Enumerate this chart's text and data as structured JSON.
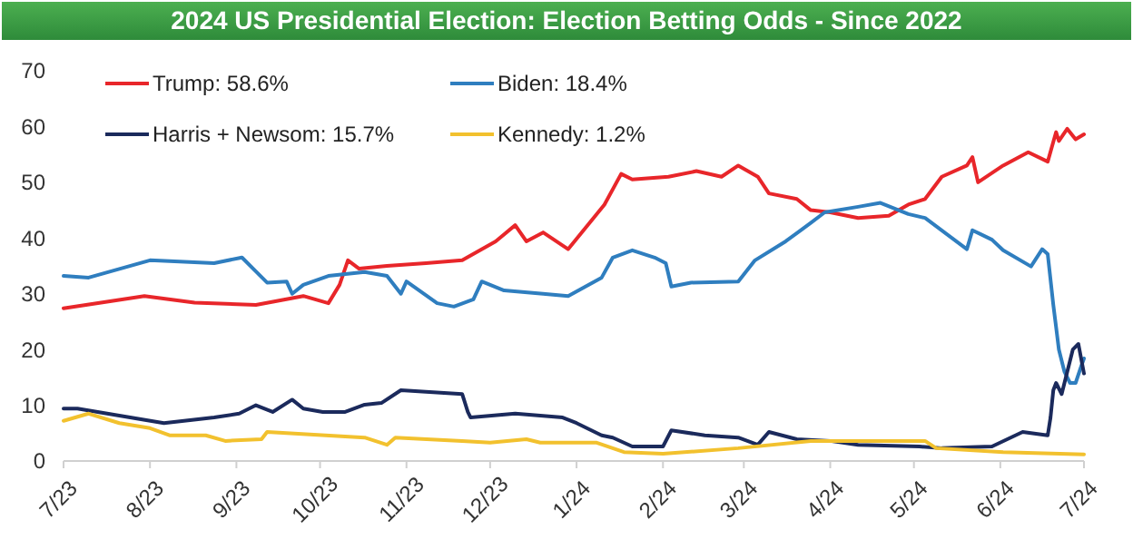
{
  "chart_data": {
    "type": "line",
    "title": "2024 US Presidential Election: Election Betting Odds - Since 2022",
    "xlim": [
      "2023-07-01",
      "2024-07-01"
    ],
    "xticks": [
      {
        "value": "2023-07-01",
        "label": "7/23"
      },
      {
        "value": "2023-08-01",
        "label": "8/23"
      },
      {
        "value": "2023-09-01",
        "label": "9/23"
      },
      {
        "value": "2023-10-01",
        "label": "10/23"
      },
      {
        "value": "2023-11-01",
        "label": "11/23"
      },
      {
        "value": "2023-12-01",
        "label": "12/23"
      },
      {
        "value": "2024-01-01",
        "label": "1/24"
      },
      {
        "value": "2024-02-01",
        "label": "2/24"
      },
      {
        "value": "2024-03-01",
        "label": "3/24"
      },
      {
        "value": "2024-04-01",
        "label": "4/24"
      },
      {
        "value": "2024-05-01",
        "label": "5/24"
      },
      {
        "value": "2024-06-01",
        "label": "6/24"
      },
      {
        "value": "2024-07-01",
        "label": "7/24"
      }
    ],
    "ylim": [
      0,
      70
    ],
    "yticks": [
      0,
      10,
      20,
      30,
      40,
      50,
      60,
      70
    ],
    "grid": false,
    "legend": "top",
    "marker": "none",
    "line_style": "solid",
    "series": [
      {
        "name": "Trump: 58.6%",
        "color": "#e8262a",
        "x": [
          "2023-07-01",
          "2023-07-30",
          "2023-08-17",
          "2023-09-08",
          "2023-09-25",
          "2023-10-04",
          "2023-10-08",
          "2023-10-11",
          "2023-10-15",
          "2023-10-25",
          "2023-11-08",
          "2023-11-21",
          "2023-12-03",
          "2023-12-10",
          "2023-12-14",
          "2023-12-20",
          "2023-12-29",
          "2024-01-11",
          "2024-01-17",
          "2024-01-21",
          "2024-02-03",
          "2024-02-13",
          "2024-02-22",
          "2024-02-28",
          "2024-03-06",
          "2024-03-10",
          "2024-03-20",
          "2024-03-25",
          "2024-04-01",
          "2024-04-11",
          "2024-04-22",
          "2024-04-29",
          "2024-05-05",
          "2024-05-11",
          "2024-05-20",
          "2024-05-22",
          "2024-05-24",
          "2024-06-02",
          "2024-06-11",
          "2024-06-18",
          "2024-06-21",
          "2024-06-22",
          "2024-06-25",
          "2024-06-28",
          "2024-07-01"
        ],
        "values": [
          27.4,
          29.6,
          28.4,
          28,
          29.6,
          28.3,
          31.6,
          36,
          34.5,
          35,
          35.5,
          36,
          39.4,
          42.3,
          39.4,
          41,
          38,
          46,
          51.5,
          50.5,
          51,
          52,
          51,
          53,
          51,
          48,
          47,
          45,
          44.6,
          43.6,
          44,
          46,
          47,
          51,
          53,
          54.5,
          50,
          53,
          55.4,
          53.7,
          59,
          57.4,
          59.6,
          57.7,
          58.6
        ]
      },
      {
        "name": "Biden: 18.4%",
        "color": "#2f7ebf",
        "x": [
          "2023-07-01",
          "2023-07-10",
          "2023-08-01",
          "2023-08-24",
          "2023-09-03",
          "2023-09-08",
          "2023-09-12",
          "2023-09-19",
          "2023-09-21",
          "2023-09-25",
          "2023-10-04",
          "2023-10-17",
          "2023-10-25",
          "2023-10-30",
          "2023-11-01",
          "2023-11-12",
          "2023-11-18",
          "2023-11-25",
          "2023-11-28",
          "2023-12-06",
          "2023-12-20",
          "2023-12-29",
          "2024-01-10",
          "2024-01-14",
          "2024-01-21",
          "2024-01-29",
          "2024-02-02",
          "2024-02-04",
          "2024-02-11",
          "2024-02-28",
          "2024-03-05",
          "2024-03-16",
          "2024-03-25",
          "2024-03-30",
          "2024-04-11",
          "2024-04-19",
          "2024-04-29",
          "2024-05-05",
          "2024-05-20",
          "2024-05-22",
          "2024-05-29",
          "2024-06-02",
          "2024-06-12",
          "2024-06-16",
          "2024-06-18",
          "2024-06-20",
          "2024-06-21",
          "2024-06-22",
          "2024-06-24",
          "2024-06-26",
          "2024-06-28",
          "2024-06-30",
          "2024-07-01"
        ],
        "values": [
          33.2,
          32.9,
          36,
          35.5,
          36.5,
          34,
          32,
          32.2,
          30,
          31.6,
          33.2,
          33.9,
          33.2,
          30,
          32.2,
          28.3,
          27.7,
          29,
          32.2,
          30.6,
          30,
          29.6,
          32.9,
          36.5,
          37.8,
          36.5,
          35.5,
          31.3,
          32,
          32.2,
          36,
          39.4,
          42.7,
          44.6,
          45.6,
          46.3,
          44.3,
          43.6,
          38,
          41.4,
          39.7,
          37.8,
          34.9,
          38,
          37.1,
          28,
          24,
          20,
          16,
          14,
          14,
          17,
          18.4
        ]
      },
      {
        "name": "Harris + Newsom: 15.7%",
        "color": "#1b2a5c",
        "x": [
          "2023-07-01",
          "2023-07-06",
          "2023-08-06",
          "2023-08-24",
          "2023-09-02",
          "2023-09-08",
          "2023-09-14",
          "2023-09-21",
          "2023-09-25",
          "2023-10-02",
          "2023-10-10",
          "2023-10-17",
          "2023-10-23",
          "2023-10-30",
          "2023-11-08",
          "2023-11-21",
          "2023-11-23",
          "2023-11-24",
          "2023-12-10",
          "2023-12-27",
          "2024-01-01",
          "2024-01-10",
          "2024-01-14",
          "2024-01-21",
          "2024-02-01",
          "2024-02-04",
          "2024-02-16",
          "2024-02-28",
          "2024-03-06",
          "2024-03-10",
          "2024-03-20",
          "2024-04-01",
          "2024-04-11",
          "2024-05-03",
          "2024-05-11",
          "2024-05-29",
          "2024-06-09",
          "2024-06-18",
          "2024-06-19",
          "2024-06-20",
          "2024-06-21",
          "2024-06-23",
          "2024-06-25",
          "2024-06-27",
          "2024-06-29",
          "2024-07-01"
        ],
        "values": [
          9.4,
          9.4,
          6.8,
          7.8,
          8.5,
          10,
          8.8,
          11,
          9.4,
          8.8,
          8.8,
          10.1,
          10.4,
          12.7,
          12.4,
          12,
          8.8,
          7.8,
          8.5,
          7.8,
          6.8,
          4.6,
          4.2,
          2.6,
          2.6,
          5.5,
          4.6,
          4.2,
          2.9,
          5.2,
          3.9,
          3.6,
          2.9,
          2.6,
          2.3,
          2.6,
          5.2,
          4.6,
          7.8,
          12.7,
          14,
          12,
          16,
          20,
          21,
          15.7
        ]
      },
      {
        "name": "Kennedy: 1.2%",
        "color": "#f2c12e",
        "x": [
          "2023-07-01",
          "2023-07-10",
          "2023-07-21",
          "2023-08-01",
          "2023-08-08",
          "2023-08-21",
          "2023-08-28",
          "2023-09-10",
          "2023-09-12",
          "2023-10-17",
          "2023-10-25",
          "2023-10-28",
          "2023-11-21",
          "2023-12-01",
          "2023-12-14",
          "2023-12-19",
          "2024-01-01",
          "2024-01-08",
          "2024-01-18",
          "2024-02-01",
          "2024-02-28",
          "2024-03-25",
          "2024-05-05",
          "2024-05-09",
          "2024-06-02",
          "2024-07-01"
        ],
        "values": [
          7.2,
          8.5,
          6.8,
          5.9,
          4.6,
          4.6,
          3.6,
          3.9,
          5.2,
          4.2,
          2.9,
          4.2,
          3.6,
          3.3,
          3.9,
          3.3,
          3.3,
          3.3,
          1.6,
          1.3,
          2.3,
          3.6,
          3.6,
          2.3,
          1.6,
          1.2
        ]
      }
    ]
  }
}
